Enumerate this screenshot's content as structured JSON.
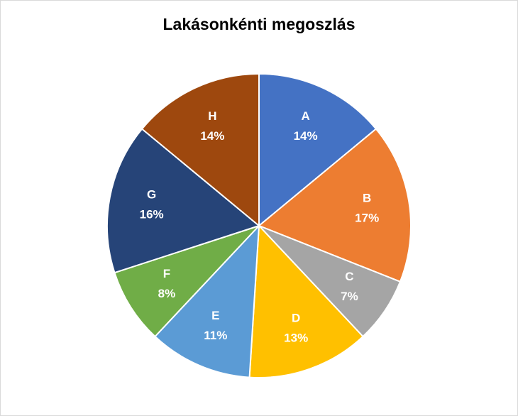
{
  "chart_data": {
    "type": "pie",
    "title": "Lakásonkénti megoszlás",
    "categories": [
      "A",
      "B",
      "C",
      "D",
      "E",
      "F",
      "G",
      "H"
    ],
    "values": [
      14,
      17,
      7,
      13,
      11,
      8,
      16,
      14
    ],
    "value_labels": [
      "14%",
      "17%",
      "7%",
      "13%",
      "11%",
      "8%",
      "16%",
      "14%"
    ],
    "colors": [
      "#4472c4",
      "#ed7d31",
      "#a5a5a5",
      "#ffc000",
      "#5b9bd5",
      "#70ad47",
      "#264478",
      "#9e480e"
    ]
  }
}
